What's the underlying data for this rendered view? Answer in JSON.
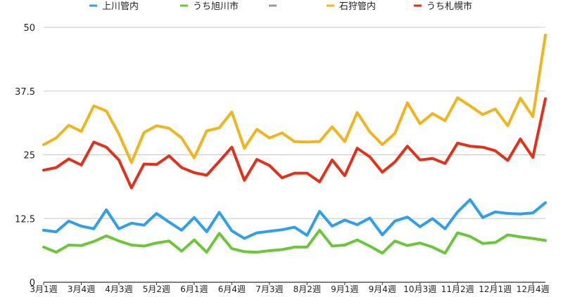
{
  "chart_data": {
    "type": "line",
    "title": "",
    "xlabel": "",
    "ylabel": "",
    "ylim": [
      0,
      50
    ],
    "yticks": [
      0,
      12.5,
      25,
      37.5,
      50
    ],
    "ytick_labels": [
      "0",
      "12.5",
      "25",
      "37.5",
      "50"
    ],
    "grid": true,
    "legend_position": "top",
    "x_tick_labels": [
      "3月1週",
      "3月4週",
      "4月3週",
      "5月2週",
      "6月1週",
      "6月4週",
      "7月3週",
      "8月2週",
      "9月1週",
      "9月4週",
      "10月3週",
      "11月2週",
      "12月1週",
      "12月4週"
    ],
    "legend": [
      {
        "name": "上川管内",
        "color": "#2f9fea",
        "kind": "series"
      },
      {
        "name": "うち旭川市",
        "color": "#6cc63a",
        "kind": "series"
      },
      {
        "name": "",
        "color": "#999999",
        "kind": "blank"
      },
      {
        "name": "石狩管内",
        "color": "#f0b41e",
        "kind": "series"
      },
      {
        "name": "うち札幌市",
        "color": "#e2311b",
        "kind": "series"
      }
    ],
    "series": [
      {
        "name": "上川管内",
        "color": "#2f9fea",
        "values": [
          10.2,
          9.9,
          12.0,
          11.0,
          10.5,
          14.2,
          10.5,
          11.6,
          11.2,
          13.5,
          11.8,
          10.2,
          12.7,
          9.9,
          13.7,
          10.1,
          8.6,
          9.7,
          10.0,
          10.3,
          10.8,
          9.2,
          13.9,
          11.0,
          12.2,
          11.3,
          12.6,
          9.3,
          12.0,
          12.8,
          10.9,
          12.5,
          10.5,
          13.8,
          16.2,
          12.7,
          13.8,
          13.5,
          13.4,
          13.6,
          15.6
        ]
      },
      {
        "name": "うち旭川市",
        "color": "#6cc63a",
        "values": [
          6.9,
          5.9,
          7.3,
          7.2,
          8.0,
          9.1,
          8.1,
          7.3,
          7.1,
          7.7,
          8.1,
          6.1,
          8.3,
          5.9,
          9.6,
          6.6,
          6.0,
          5.9,
          6.2,
          6.4,
          6.9,
          6.9,
          10.2,
          7.1,
          7.3,
          8.3,
          7.1,
          5.7,
          8.1,
          7.2,
          7.7,
          6.9,
          5.7,
          9.7,
          9.0,
          7.6,
          7.8,
          9.3,
          8.9,
          8.6,
          8.2
        ]
      },
      {
        "name": "石狩管内",
        "color": "#f0b41e",
        "values": [
          27.0,
          28.3,
          30.8,
          29.6,
          34.6,
          33.6,
          29.1,
          23.5,
          29.4,
          30.7,
          30.2,
          28.3,
          24.4,
          29.7,
          30.3,
          33.4,
          26.3,
          30.0,
          28.3,
          29.3,
          27.6,
          27.5,
          27.6,
          30.5,
          27.6,
          33.3,
          29.5,
          27.0,
          29.2,
          35.2,
          31.1,
          33.1,
          31.7,
          36.2,
          34.6,
          32.9,
          34.0,
          30.7,
          36.1,
          32.5,
          48.5
        ]
      },
      {
        "name": "うち札幌市",
        "color": "#e2311b",
        "values": [
          22.0,
          22.5,
          24.2,
          23.0,
          27.5,
          26.5,
          24.0,
          18.5,
          23.2,
          23.1,
          24.8,
          22.5,
          21.5,
          21.0,
          23.7,
          26.5,
          20.0,
          24.1,
          22.9,
          20.5,
          21.4,
          21.4,
          19.7,
          24.0,
          20.9,
          26.3,
          24.6,
          21.6,
          23.6,
          26.7,
          24.0,
          24.3,
          23.3,
          27.3,
          26.7,
          26.5,
          25.8,
          23.9,
          28.1,
          24.5,
          36.0
        ]
      }
    ]
  }
}
